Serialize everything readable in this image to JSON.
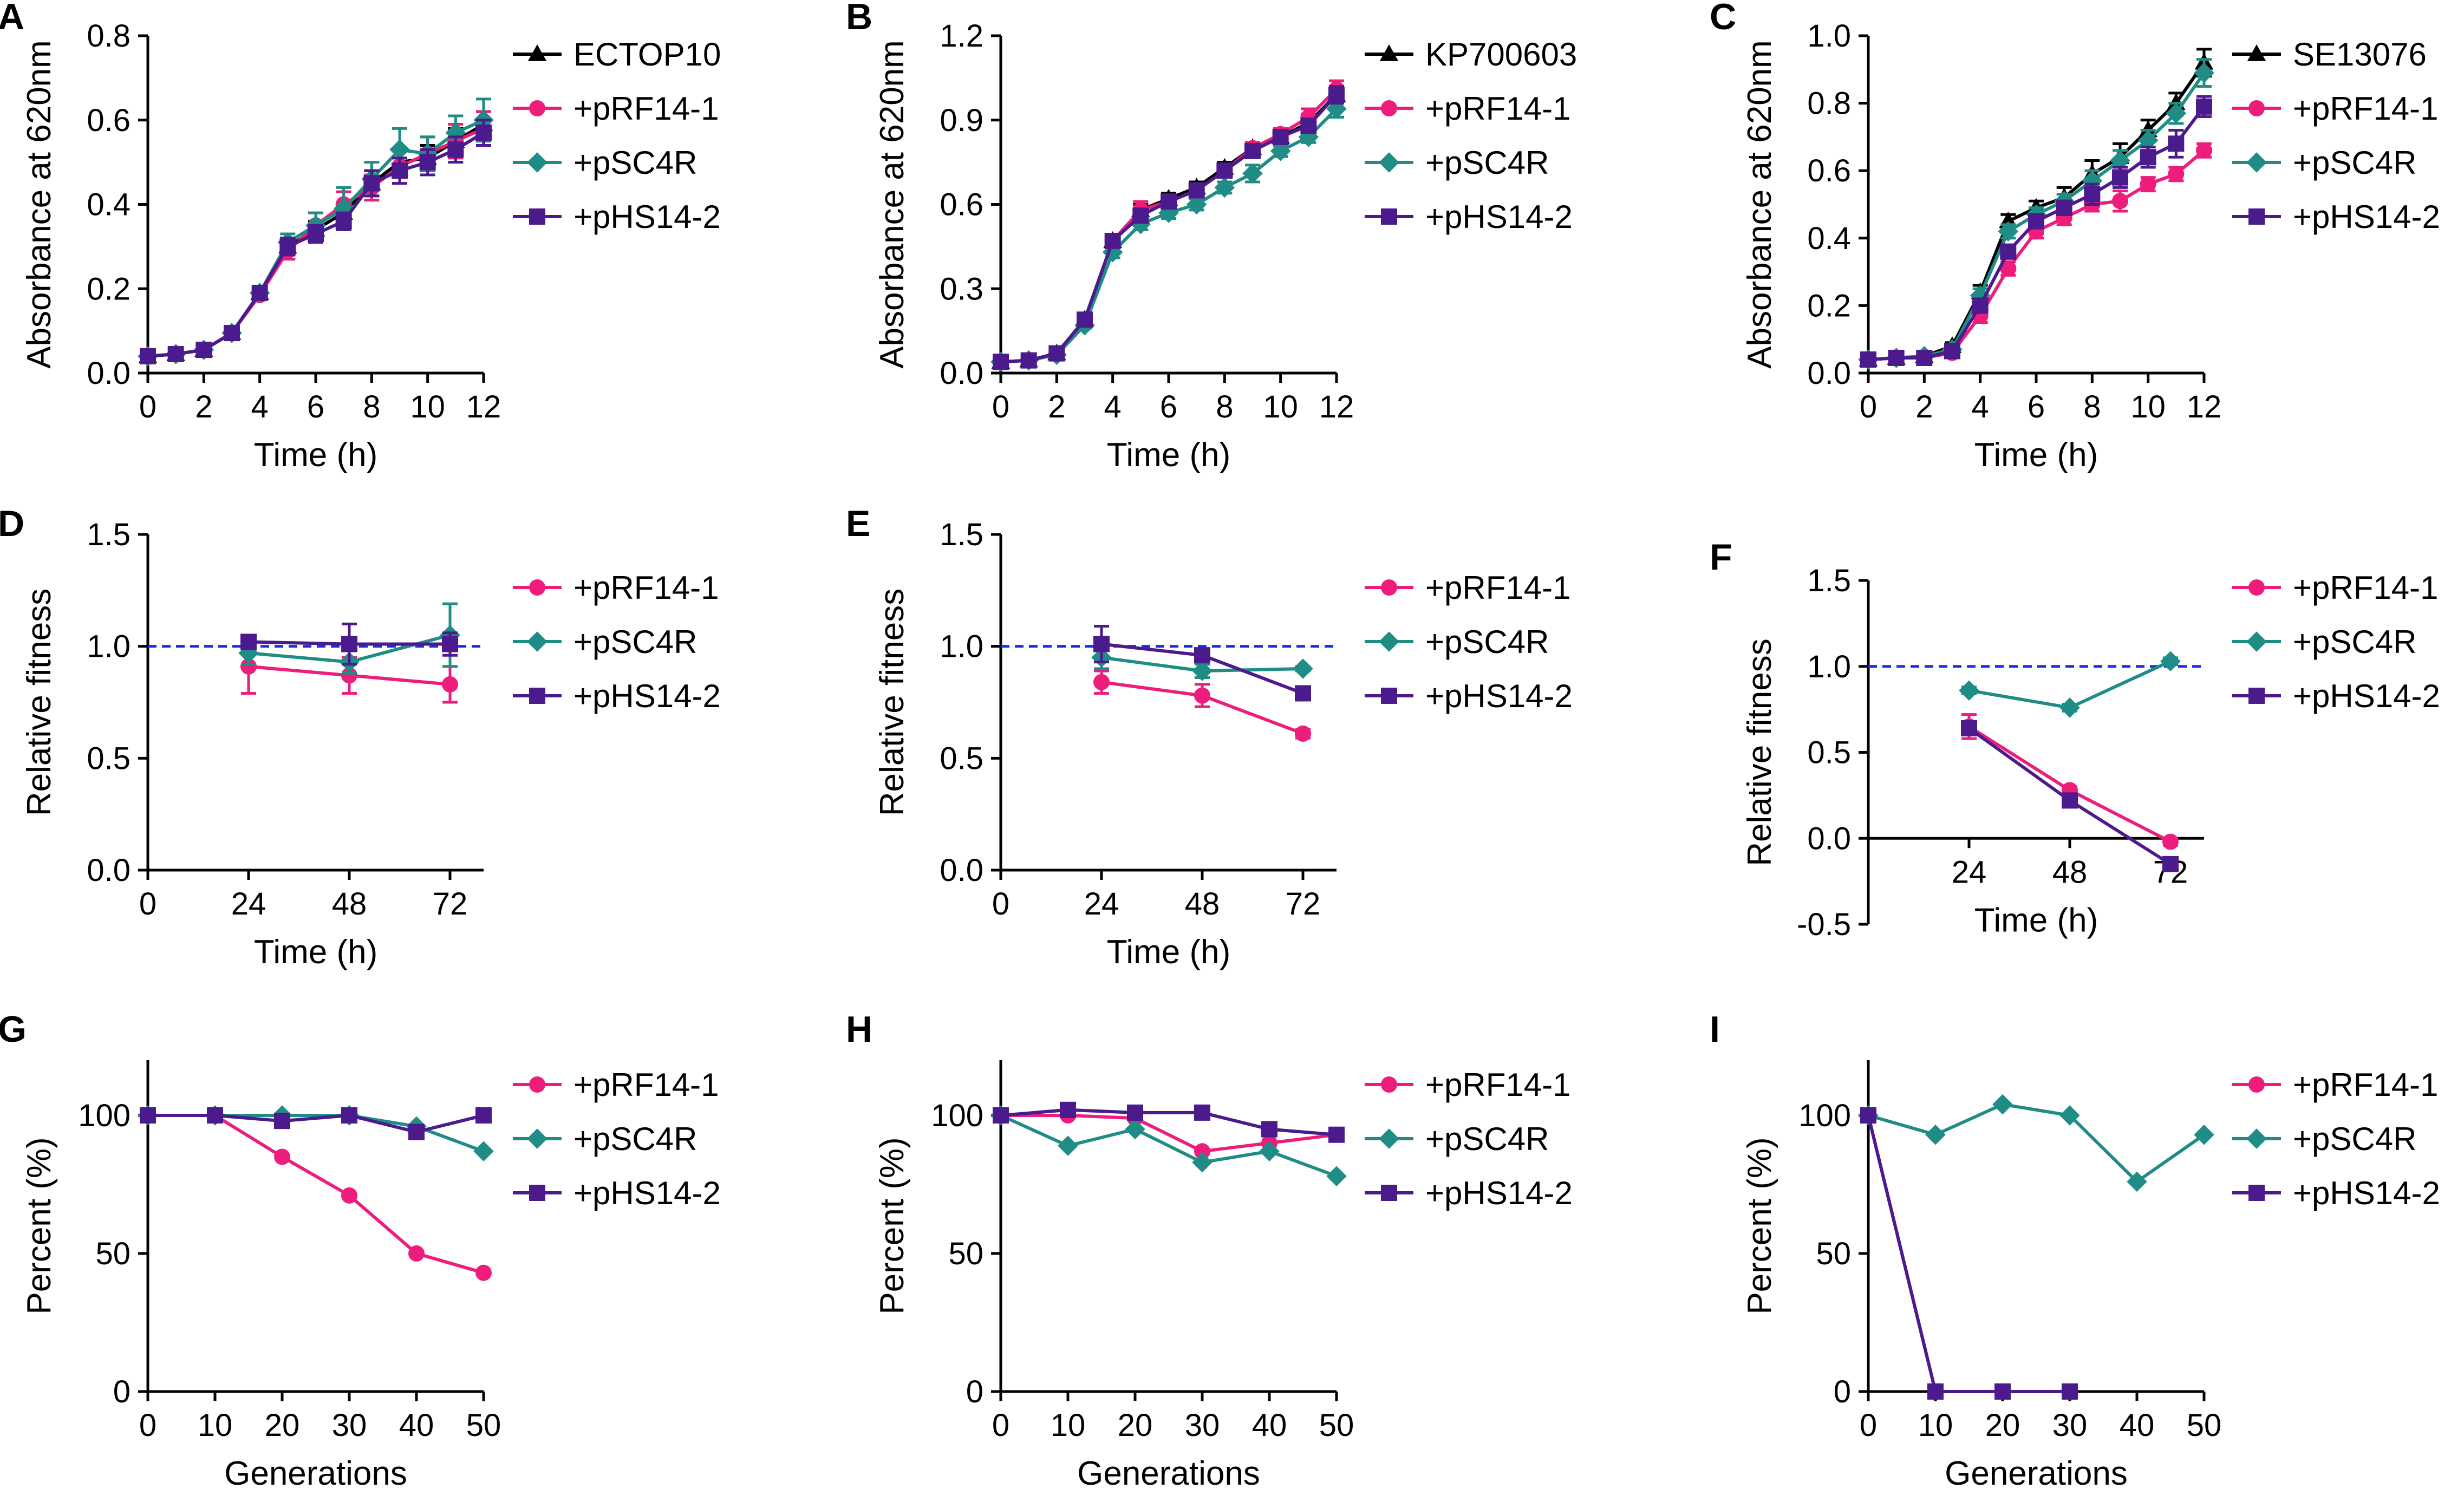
{
  "colors": {
    "ctrl": "#000000",
    "pRF": "#ee1c7b",
    "pSC": "#1f8c86",
    "pHS": "#4b1a8c",
    "ref": "#1a2ee8",
    "axis": "#000000"
  },
  "chart_data": [
    {
      "panel": "A",
      "type": "line",
      "title": "",
      "xlabel": "Time (h)",
      "ylabel": "Absorbance at 620nm",
      "xlim": [
        0,
        12
      ],
      "ylim": [
        0,
        0.8
      ],
      "xticks": [
        0,
        2,
        4,
        6,
        8,
        10,
        12
      ],
      "yticks": [
        0.0,
        0.2,
        0.4,
        0.6,
        0.8
      ],
      "ytick_labels": [
        "0.0",
        "0.2",
        "0.4",
        "0.6",
        "0.8"
      ],
      "x": [
        0,
        1,
        2,
        3,
        4,
        5,
        6,
        7,
        8,
        9,
        10,
        11,
        12
      ],
      "series": [
        {
          "name": "ECTOP10",
          "key": "ctrl",
          "marker": "triangle",
          "values": [
            0.04,
            0.045,
            0.055,
            0.095,
            0.19,
            0.3,
            0.34,
            0.38,
            0.45,
            0.5,
            0.51,
            0.55,
            0.59
          ],
          "err": [
            0.005,
            0.005,
            0.005,
            0.01,
            0.01,
            0.02,
            0.02,
            0.02,
            0.03,
            0.03,
            0.03,
            0.03,
            0.03
          ]
        },
        {
          "name": "+pRF14-1",
          "key": "pRF",
          "marker": "circle",
          "values": [
            0.04,
            0.045,
            0.055,
            0.095,
            0.185,
            0.29,
            0.35,
            0.4,
            0.44,
            0.49,
            0.52,
            0.55,
            0.58
          ],
          "err": [
            0.005,
            0.005,
            0.005,
            0.01,
            0.01,
            0.02,
            0.03,
            0.03,
            0.03,
            0.04,
            0.04,
            0.04,
            0.04
          ]
        },
        {
          "name": "+pSC4R",
          "key": "pSC",
          "marker": "diamond",
          "values": [
            0.04,
            0.045,
            0.055,
            0.095,
            0.19,
            0.31,
            0.35,
            0.39,
            0.46,
            0.53,
            0.52,
            0.57,
            0.6
          ],
          "err": [
            0.005,
            0.005,
            0.005,
            0.01,
            0.01,
            0.02,
            0.03,
            0.05,
            0.04,
            0.05,
            0.04,
            0.04,
            0.05
          ]
        },
        {
          "name": "+pHS14-2",
          "key": "pHS",
          "marker": "square",
          "values": [
            0.04,
            0.045,
            0.055,
            0.095,
            0.19,
            0.3,
            0.33,
            0.36,
            0.45,
            0.48,
            0.5,
            0.53,
            0.57
          ],
          "err": [
            0.005,
            0.005,
            0.005,
            0.01,
            0.01,
            0.02,
            0.02,
            0.02,
            0.03,
            0.03,
            0.03,
            0.03,
            0.03
          ]
        }
      ]
    },
    {
      "panel": "B",
      "type": "line",
      "title": "",
      "xlabel": "Time (h)",
      "ylabel": "Absorbance at 620nm",
      "xlim": [
        0,
        12
      ],
      "ylim": [
        0,
        1.2
      ],
      "xticks": [
        0,
        2,
        4,
        6,
        8,
        10,
        12
      ],
      "yticks": [
        0.0,
        0.3,
        0.6,
        0.9,
        1.2
      ],
      "ytick_labels": [
        "0.0",
        "0.3",
        "0.6",
        "0.9",
        "1.2"
      ],
      "x": [
        0,
        1,
        2,
        3,
        4,
        5,
        6,
        7,
        8,
        9,
        10,
        11,
        12
      ],
      "series": [
        {
          "name": "KP700603",
          "key": "ctrl",
          "marker": "triangle",
          "values": [
            0.04,
            0.045,
            0.07,
            0.19,
            0.47,
            0.58,
            0.62,
            0.66,
            0.73,
            0.8,
            0.84,
            0.89,
            0.99
          ],
          "err": [
            0.005,
            0.005,
            0.005,
            0.01,
            0.02,
            0.02,
            0.02,
            0.02,
            0.02,
            0.02,
            0.02,
            0.03,
            0.03
          ]
        },
        {
          "name": "+pRF14-1",
          "key": "pRF",
          "marker": "circle",
          "values": [
            0.04,
            0.045,
            0.07,
            0.19,
            0.47,
            0.58,
            0.61,
            0.65,
            0.72,
            0.8,
            0.85,
            0.91,
            1.01
          ],
          "err": [
            0.005,
            0.005,
            0.005,
            0.01,
            0.02,
            0.03,
            0.02,
            0.02,
            0.02,
            0.02,
            0.02,
            0.03,
            0.03
          ]
        },
        {
          "name": "+pSC4R",
          "key": "pSC",
          "marker": "diamond",
          "values": [
            0.04,
            0.045,
            0.065,
            0.17,
            0.43,
            0.53,
            0.57,
            0.6,
            0.66,
            0.71,
            0.79,
            0.84,
            0.94
          ],
          "err": [
            0.005,
            0.005,
            0.005,
            0.01,
            0.02,
            0.02,
            0.02,
            0.02,
            0.02,
            0.03,
            0.02,
            0.02,
            0.03
          ]
        },
        {
          "name": "+pHS14-2",
          "key": "pHS",
          "marker": "square",
          "values": [
            0.04,
            0.045,
            0.07,
            0.19,
            0.47,
            0.56,
            0.61,
            0.65,
            0.72,
            0.79,
            0.84,
            0.88,
            0.99
          ],
          "err": [
            0.005,
            0.005,
            0.005,
            0.01,
            0.02,
            0.02,
            0.02,
            0.02,
            0.02,
            0.02,
            0.02,
            0.02,
            0.03
          ]
        }
      ]
    },
    {
      "panel": "C",
      "type": "line",
      "title": "",
      "xlabel": "Time (h)",
      "ylabel": "Absorbance at 620nm",
      "xlim": [
        0,
        12
      ],
      "ylim": [
        0,
        1.0
      ],
      "xticks": [
        0,
        2,
        4,
        6,
        8,
        10,
        12
      ],
      "yticks": [
        0.0,
        0.2,
        0.4,
        0.6,
        0.8,
        1.0
      ],
      "ytick_labels": [
        "0.0",
        "0.2",
        "0.4",
        "0.6",
        "0.8",
        "1.0"
      ],
      "x": [
        0,
        1,
        2,
        3,
        4,
        5,
        6,
        7,
        8,
        9,
        10,
        11,
        12
      ],
      "series": [
        {
          "name": "SE13076",
          "key": "ctrl",
          "marker": "triangle",
          "values": [
            0.04,
            0.045,
            0.05,
            0.08,
            0.24,
            0.45,
            0.49,
            0.52,
            0.59,
            0.64,
            0.72,
            0.8,
            0.92
          ],
          "err": [
            0.005,
            0.005,
            0.005,
            0.01,
            0.02,
            0.02,
            0.02,
            0.03,
            0.04,
            0.04,
            0.03,
            0.03,
            0.04
          ]
        },
        {
          "name": "+pRF14-1",
          "key": "pRF",
          "marker": "circle",
          "values": [
            0.04,
            0.045,
            0.045,
            0.06,
            0.17,
            0.31,
            0.42,
            0.46,
            0.5,
            0.51,
            0.56,
            0.59,
            0.66
          ],
          "err": [
            0.005,
            0.005,
            0.005,
            0.01,
            0.02,
            0.02,
            0.02,
            0.02,
            0.02,
            0.03,
            0.02,
            0.02,
            0.02
          ]
        },
        {
          "name": "+pSC4R",
          "key": "pSC",
          "marker": "diamond",
          "values": [
            0.04,
            0.045,
            0.05,
            0.07,
            0.23,
            0.42,
            0.47,
            0.51,
            0.57,
            0.63,
            0.69,
            0.77,
            0.89
          ],
          "err": [
            0.005,
            0.005,
            0.005,
            0.01,
            0.02,
            0.02,
            0.02,
            0.02,
            0.03,
            0.03,
            0.03,
            0.03,
            0.04
          ]
        },
        {
          "name": "+pHS14-2",
          "key": "pHS",
          "marker": "square",
          "values": [
            0.04,
            0.045,
            0.045,
            0.065,
            0.2,
            0.36,
            0.45,
            0.49,
            0.53,
            0.58,
            0.64,
            0.68,
            0.79
          ],
          "err": [
            0.005,
            0.005,
            0.005,
            0.01,
            0.02,
            0.02,
            0.02,
            0.02,
            0.03,
            0.03,
            0.03,
            0.04,
            0.03
          ]
        }
      ]
    },
    {
      "panel": "D",
      "type": "line",
      "title": "",
      "xlabel": "Time (h)",
      "ylabel": "Relative fitness",
      "xlim": [
        0,
        80
      ],
      "ylim": [
        0,
        1.5
      ],
      "xticks": [
        0,
        24,
        48,
        72
      ],
      "yticks": [
        0.0,
        0.5,
        1.0,
        1.5
      ],
      "ytick_labels": [
        "0.0",
        "0.5",
        "1.0",
        "1.5"
      ],
      "refline": 1.0,
      "x": [
        24,
        48,
        72
      ],
      "series": [
        {
          "name": "+pRF14-1",
          "key": "pRF",
          "marker": "circle",
          "values": [
            0.91,
            0.87,
            0.83
          ],
          "err": [
            0.12,
            0.08,
            0.08
          ]
        },
        {
          "name": "+pSC4R",
          "key": "pSC",
          "marker": "diamond",
          "values": [
            0.97,
            0.93,
            1.05
          ],
          "err": [
            0.05,
            0.05,
            0.14
          ]
        },
        {
          "name": "+pHS14-2",
          "key": "pHS",
          "marker": "square",
          "values": [
            1.02,
            1.01,
            1.01
          ],
          "err": [
            0.03,
            0.09,
            0.05
          ]
        }
      ]
    },
    {
      "panel": "E",
      "type": "line",
      "title": "",
      "xlabel": "Time (h)",
      "ylabel": "Relative fitness",
      "xlim": [
        0,
        80
      ],
      "ylim": [
        0,
        1.5
      ],
      "xticks": [
        0,
        24,
        48,
        72
      ],
      "yticks": [
        0.0,
        0.5,
        1.0,
        1.5
      ],
      "ytick_labels": [
        "0.0",
        "0.5",
        "1.0",
        "1.5"
      ],
      "refline": 1.0,
      "x": [
        24,
        48,
        72
      ],
      "series": [
        {
          "name": "+pRF14-1",
          "key": "pRF",
          "marker": "circle",
          "values": [
            0.84,
            0.78,
            0.61
          ],
          "err": [
            0.05,
            0.05,
            0.02
          ]
        },
        {
          "name": "+pSC4R",
          "key": "pSC",
          "marker": "diamond",
          "values": [
            0.95,
            0.89,
            0.9
          ],
          "err": [
            0.05,
            0.03,
            0.01
          ]
        },
        {
          "name": "+pHS14-2",
          "key": "pHS",
          "marker": "square",
          "values": [
            1.01,
            0.96,
            0.79
          ],
          "err": [
            0.08,
            0.02,
            0.01
          ]
        }
      ]
    },
    {
      "panel": "F",
      "type": "line",
      "title": "",
      "xlabel": "Time (h)",
      "ylabel": "Relative fitness",
      "xlim": [
        0,
        80
      ],
      "ylim": [
        -0.5,
        1.5
      ],
      "xticks": [
        24,
        48,
        72
      ],
      "yticks": [
        -0.5,
        0.0,
        0.5,
        1.0,
        1.5
      ],
      "ytick_labels": [
        "-0.5",
        "0.0",
        "0.5",
        "1.0",
        "1.5"
      ],
      "refline": 1.0,
      "x": [
        24,
        48,
        72
      ],
      "series": [
        {
          "name": "+pRF14-1",
          "key": "pRF",
          "marker": "circle",
          "values": [
            0.65,
            0.28,
            -0.02
          ],
          "err": [
            0.07,
            0.02,
            0.02
          ]
        },
        {
          "name": "+pSC4R",
          "key": "pSC",
          "marker": "diamond",
          "values": [
            0.86,
            0.76,
            1.03
          ],
          "err": [
            0.02,
            0.02,
            0.02
          ]
        },
        {
          "name": "+pHS14-2",
          "key": "pHS",
          "marker": "square",
          "values": [
            0.64,
            0.22,
            -0.15
          ],
          "err": [
            0.02,
            0.02,
            0.02
          ]
        }
      ]
    },
    {
      "panel": "G",
      "type": "line",
      "title": "",
      "xlabel": "Generations",
      "ylabel": "Percent (%)",
      "xlim": [
        0,
        50
      ],
      "ylim": [
        0,
        120
      ],
      "xticks": [
        0,
        10,
        20,
        30,
        40,
        50
      ],
      "yticks": [
        0,
        50,
        100
      ],
      "ytick_labels": [
        "0",
        "50",
        "100"
      ],
      "x": [
        0,
        10,
        20,
        30,
        40,
        50
      ],
      "series": [
        {
          "name": "+pRF14-1",
          "key": "pRF",
          "marker": "circle",
          "values": [
            100,
            100,
            85,
            71,
            50,
            43
          ]
        },
        {
          "name": "+pSC4R",
          "key": "pSC",
          "marker": "diamond",
          "values": [
            100,
            100,
            100,
            100,
            96,
            87
          ]
        },
        {
          "name": "+pHS14-2",
          "key": "pHS",
          "marker": "square",
          "values": [
            100,
            100,
            98,
            100,
            94,
            100
          ]
        }
      ]
    },
    {
      "panel": "H",
      "type": "line",
      "title": "",
      "xlabel": "Generations",
      "ylabel": "Percent (%)",
      "xlim": [
        0,
        50
      ],
      "ylim": [
        0,
        120
      ],
      "xticks": [
        0,
        10,
        20,
        30,
        40,
        50
      ],
      "yticks": [
        0,
        50,
        100
      ],
      "ytick_labels": [
        "0",
        "50",
        "100"
      ],
      "x": [
        0,
        10,
        20,
        30,
        40,
        50
      ],
      "series": [
        {
          "name": "+pRF14-1",
          "key": "pRF",
          "marker": "circle",
          "values": [
            100,
            100,
            99,
            87,
            90,
            93
          ]
        },
        {
          "name": "+pSC4R",
          "key": "pSC",
          "marker": "diamond",
          "values": [
            100,
            89,
            95,
            83,
            87,
            78
          ]
        },
        {
          "name": "+pHS14-2",
          "key": "pHS",
          "marker": "square",
          "values": [
            100,
            102,
            101,
            101,
            95,
            93
          ]
        }
      ]
    },
    {
      "panel": "I",
      "type": "line",
      "title": "",
      "xlabel": "Generations",
      "ylabel": "Percent (%)",
      "xlim": [
        0,
        50
      ],
      "ylim": [
        0,
        120
      ],
      "xticks": [
        0,
        10,
        20,
        30,
        40,
        50
      ],
      "yticks": [
        0,
        50,
        100
      ],
      "ytick_labels": [
        "0",
        "50",
        "100"
      ],
      "x": [
        0,
        10,
        20,
        30,
        40,
        50
      ],
      "series": [
        {
          "name": "+pRF14-1",
          "key": "pRF",
          "marker": "circle",
          "values": [
            100,
            0,
            0,
            0,
            null,
            null
          ]
        },
        {
          "name": "+pSC4R",
          "key": "pSC",
          "marker": "diamond",
          "values": [
            100,
            93,
            104,
            100,
            76,
            93
          ]
        },
        {
          "name": "+pHS14-2",
          "key": "pHS",
          "marker": "square",
          "values": [
            100,
            0,
            0,
            0,
            null,
            null
          ]
        }
      ]
    }
  ]
}
